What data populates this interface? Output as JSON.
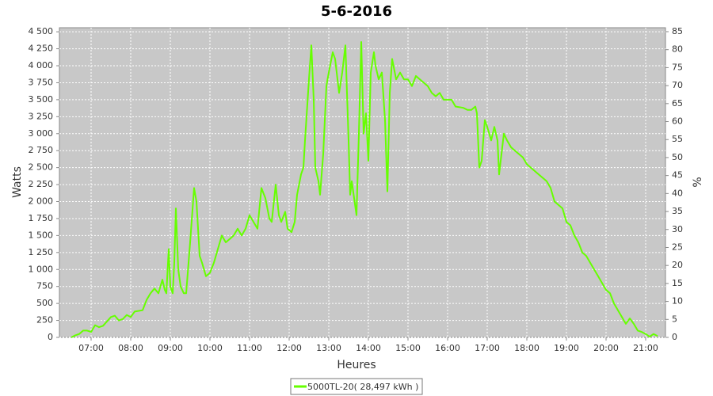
{
  "chart_data": {
    "type": "line",
    "title": "5-6-2016",
    "x_label": "Heures",
    "y_label": "Watts",
    "y2_label": "%",
    "x": [
      6.5,
      6.6,
      6.7,
      6.8,
      6.9,
      7,
      7.1,
      7.2,
      7.3,
      7.5,
      7.6,
      7.7,
      7.8,
      7.9,
      8,
      8.1,
      8.3,
      8.4,
      8.5,
      8.6,
      8.7,
      8.8,
      8.86,
      8.9,
      8.96,
      9,
      9.06,
      9.1,
      9.14,
      9.2,
      9.26,
      9.34,
      9.4,
      9.5,
      9.6,
      9.66,
      9.74,
      9.8,
      9.9,
      10,
      10.1,
      10.2,
      10.3,
      10.4,
      10.5,
      10.6,
      10.7,
      10.8,
      10.9,
      11,
      11.1,
      11.2,
      11.3,
      11.4,
      11.5,
      11.56,
      11.66,
      11.74,
      11.8,
      11.9,
      11.96,
      12.06,
      12.14,
      12.2,
      12.3,
      12.36,
      12.4,
      12.5,
      12.56,
      12.62,
      12.66,
      12.74,
      12.78,
      12.86,
      12.94,
      13,
      13.1,
      13.16,
      13.26,
      13.34,
      13.42,
      13.5,
      13.54,
      13.58,
      13.64,
      13.7,
      13.76,
      13.82,
      13.88,
      13.94,
      14,
      14.06,
      14.14,
      14.18,
      14.26,
      14.34,
      14.42,
      14.48,
      14.54,
      14.6,
      14.7,
      14.8,
      14.9,
      15,
      15.1,
      15.2,
      15.3,
      15.5,
      15.6,
      15.7,
      15.8,
      15.9,
      16,
      16.1,
      16.2,
      16.4,
      16.5,
      16.6,
      16.7,
      16.74,
      16.8,
      16.86,
      16.94,
      17,
      17.1,
      17.18,
      17.26,
      17.3,
      17.36,
      17.42,
      17.5,
      17.6,
      17.7,
      17.9,
      18,
      18.1,
      18.3,
      18.5,
      18.6,
      18.7,
      18.9,
      19,
      19.1,
      19.2,
      19.3,
      19.4,
      19.5,
      19.6,
      19.7,
      19.8,
      19.9,
      20,
      20.1,
      20.2,
      20.3,
      20.4,
      20.5,
      20.6,
      20.7,
      20.8,
      20.9,
      21,
      21.1,
      21.2,
      21.3
    ],
    "series": [
      {
        "name": "5000TL-20( 28,497 kWh )",
        "color": "#66ff00",
        "values": [
          0,
          30,
          50,
          100,
          100,
          80,
          180,
          150,
          170,
          300,
          320,
          250,
          270,
          330,
          300,
          380,
          400,
          550,
          650,
          720,
          650,
          850,
          700,
          650,
          1300,
          750,
          650,
          1100,
          1900,
          1000,
          750,
          650,
          650,
          1400,
          2200,
          2000,
          1200,
          1100,
          900,
          950,
          1100,
          1300,
          1500,
          1400,
          1450,
          1500,
          1600,
          1500,
          1600,
          1800,
          1700,
          1600,
          2200,
          2050,
          1750,
          1700,
          2250,
          1800,
          1700,
          1850,
          1600,
          1550,
          1700,
          2100,
          2400,
          2500,
          2900,
          3800,
          4300,
          3500,
          2500,
          2300,
          2100,
          2700,
          3700,
          3900,
          4200,
          4100,
          3600,
          3900,
          4300,
          2900,
          2100,
          2300,
          2050,
          1800,
          3000,
          4350,
          3000,
          3300,
          2600,
          3900,
          4200,
          4000,
          3800,
          3900,
          3200,
          2150,
          3600,
          4100,
          3800,
          3900,
          3800,
          3800,
          3700,
          3850,
          3800,
          3700,
          3600,
          3550,
          3600,
          3500,
          3500,
          3500,
          3400,
          3380,
          3350,
          3350,
          3400,
          3300,
          2500,
          2600,
          3200,
          3100,
          2900,
          3100,
          2900,
          2400,
          2700,
          3000,
          2900,
          2800,
          2750,
          2650,
          2550,
          2500,
          2400,
          2300,
          2200,
          2000,
          1900,
          1700,
          1650,
          1500,
          1400,
          1250,
          1200,
          1100,
          1000,
          900,
          800,
          700,
          650,
          500,
          400,
          300,
          200,
          280,
          200,
          100,
          80,
          50,
          10,
          50,
          20
        ]
      }
    ],
    "xlim": [
      6.2,
      21.5
    ],
    "xticks": [
      {
        "value": 7,
        "label": "07:00"
      },
      {
        "value": 8,
        "label": "08:00"
      },
      {
        "value": 9,
        "label": "09:00"
      },
      {
        "value": 10,
        "label": "10:00"
      },
      {
        "value": 11,
        "label": "11:00"
      },
      {
        "value": 12,
        "label": "12:00"
      },
      {
        "value": 13,
        "label": "13:00"
      },
      {
        "value": 14,
        "label": "14:00"
      },
      {
        "value": 15,
        "label": "15:00"
      },
      {
        "value": 16,
        "label": "16:00"
      },
      {
        "value": 17,
        "label": "17:00"
      },
      {
        "value": 18,
        "label": "18:00"
      },
      {
        "value": 19,
        "label": "19:00"
      },
      {
        "value": 20,
        "label": "20:00"
      },
      {
        "value": 21,
        "label": "21:00"
      }
    ],
    "ylim": [
      0,
      4560
    ],
    "yticks": [
      0,
      250,
      500,
      750,
      {
        "value": 1000,
        "label": "1 000"
      },
      {
        "value": 1250,
        "label": "1 250"
      },
      {
        "value": 1500,
        "label": "1 500"
      },
      {
        "value": 1750,
        "label": "1 750"
      },
      {
        "value": 2000,
        "label": "2 000"
      },
      {
        "value": 2250,
        "label": "2 250"
      },
      {
        "value": 2500,
        "label": "2 500"
      },
      {
        "value": 2750,
        "label": "2 750"
      },
      {
        "value": 3000,
        "label": "3 000"
      },
      {
        "value": 3250,
        "label": "3 250"
      },
      {
        "value": 3500,
        "label": "3 500"
      },
      {
        "value": 3750,
        "label": "3 750"
      },
      {
        "value": 4000,
        "label": "4 000"
      },
      {
        "value": 4250,
        "label": "4 250"
      },
      {
        "value": 4500,
        "label": "4 500"
      }
    ],
    "y2lim": [
      0,
      86.1
    ],
    "y2ticks": [
      0,
      5,
      10,
      15,
      20,
      25,
      30,
      35,
      40,
      45,
      50,
      55,
      60,
      65,
      70,
      75,
      80,
      85
    ],
    "grid": true,
    "legend": "bottom",
    "plot_background": "#c8c8c8"
  }
}
